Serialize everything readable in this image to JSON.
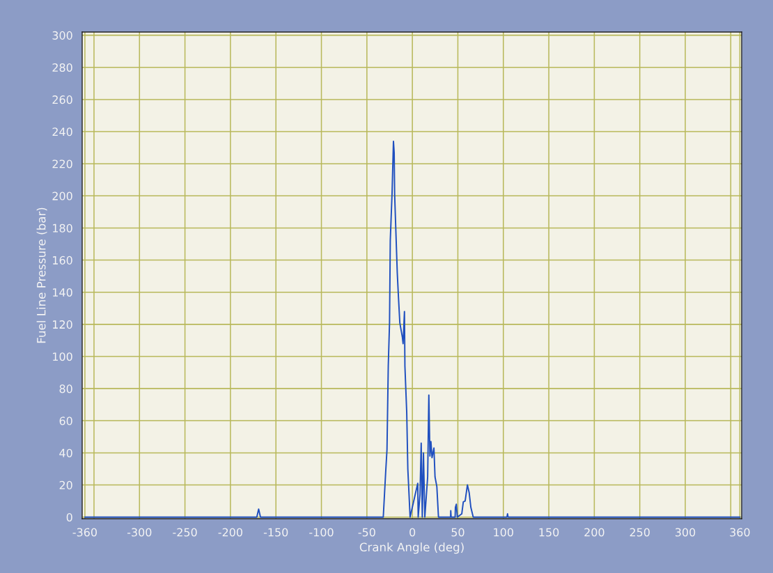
{
  "chart_data": {
    "type": "line",
    "xlabel": "Crank Angle (deg)",
    "ylabel": "Fuel Line Pressure (bar)",
    "x": [
      -360,
      -171,
      -169,
      -167,
      -33,
      -32,
      -29.3,
      -27.9,
      -26.5,
      -25.1,
      -24.3,
      -22.3,
      -20.8,
      -20,
      -19.5,
      -16.6,
      -15.3,
      -13.8,
      -11,
      -10.2,
      -8.7,
      -8.2,
      -6.2,
      -5,
      -2.5,
      5.9,
      6.4,
      8.4,
      9.7,
      10.9,
      12.2,
      13.7,
      16.8,
      18.1,
      19.3,
      20.4,
      21.6,
      23.7,
      24.9,
      26.9,
      28.7,
      42,
      42.2,
      42.6,
      47,
      47.3,
      48.3,
      49.4,
      54.3,
      56,
      58,
      60.5,
      62.5,
      64.3,
      66.9,
      104,
      104.6,
      105.2,
      359,
      360
    ],
    "series": [
      {
        "color": "#1f4fbf",
        "values": [
          0,
          0,
          5,
          0,
          0,
          0,
          28.5,
          42,
          94,
          121,
          172,
          202,
          234,
          227,
          201,
          152,
          137,
          121,
          112,
          108,
          128,
          94,
          65,
          30,
          0,
          21,
          0,
          14,
          46,
          0,
          40,
          0,
          25,
          76,
          38,
          47,
          37,
          43,
          25,
          19,
          0,
          0,
          4,
          0,
          0,
          6,
          8,
          0,
          2,
          9.5,
          10,
          20,
          15,
          6,
          0,
          0,
          2,
          0,
          0,
          0
        ]
      }
    ],
    "xlim": [
      -363,
      362
    ],
    "ylim": [
      -1,
      302
    ],
    "xticks": [
      -360,
      {
        "value": -350,
        "label": null
      },
      -300,
      -250,
      -200,
      -150,
      -100,
      -50,
      0,
      50,
      100,
      150,
      200,
      250,
      300,
      {
        "value": 350,
        "label": null
      },
      360
    ],
    "yticks": [
      0,
      20,
      40,
      60,
      80,
      100,
      120,
      140,
      160,
      180,
      200,
      220,
      240,
      260,
      280,
      300
    ],
    "grid": true,
    "legend": false,
    "marker": "none",
    "line_style": "solid"
  }
}
